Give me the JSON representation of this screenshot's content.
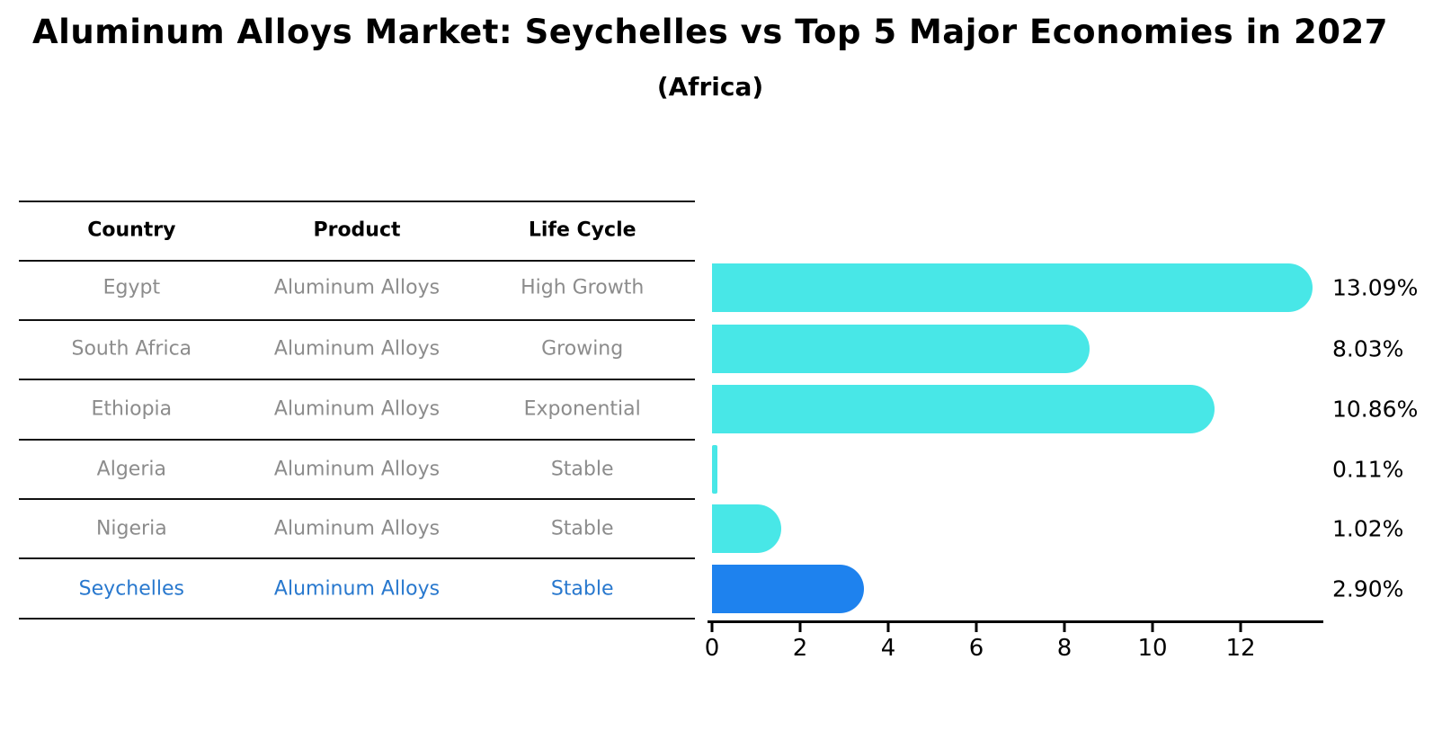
{
  "title": "Aluminum Alloys Market: Seychelles vs Top 5 Major Economies in 2027",
  "subtitle": "(Africa)",
  "table": {
    "headers": [
      "Country",
      "Product",
      "Life Cycle"
    ],
    "rows": [
      {
        "country": "Egypt",
        "product": "Aluminum Alloys",
        "life_cycle": "High Growth",
        "highlight": false
      },
      {
        "country": "South Africa",
        "product": "Aluminum Alloys",
        "life_cycle": "Growing",
        "highlight": false
      },
      {
        "country": "Ethiopia",
        "product": "Aluminum Alloys",
        "life_cycle": "Exponential",
        "highlight": false
      },
      {
        "country": "Algeria",
        "product": "Aluminum Alloys",
        "life_cycle": "Stable",
        "highlight": false
      },
      {
        "country": "Nigeria",
        "product": "Aluminum Alloys",
        "life_cycle": "Stable",
        "highlight": false
      },
      {
        "country": "Seychelles",
        "product": "Aluminum Alloys",
        "life_cycle": "Stable",
        "highlight": true
      }
    ]
  },
  "chart_data": {
    "type": "bar",
    "orientation": "horizontal",
    "title": "Aluminum Alloys Market: Seychelles vs Top 5 Major Economies in 2027",
    "subtitle": "(Africa)",
    "categories": [
      "Egypt",
      "South Africa",
      "Ethiopia",
      "Algeria",
      "Nigeria",
      "Seychelles"
    ],
    "values": [
      13.09,
      8.03,
      10.86,
      0.11,
      1.02,
      2.9
    ],
    "value_labels": [
      "13.09%",
      "8.03%",
      "10.86%",
      "0.11%",
      "1.02%",
      "2.90%"
    ],
    "x_ticks": [
      0,
      2,
      4,
      6,
      8,
      10,
      12
    ],
    "xlim": [
      0,
      13.9
    ],
    "grid": false,
    "legend": "none",
    "highlight_index": 5,
    "bar_color": "#48e7e7",
    "highlight_bar_color": "#1e82ee",
    "highlight_text_color": "#2878ce"
  },
  "colors": {
    "background": "#ffffff",
    "table_text": "#8c8c8c",
    "header_text": "#000000",
    "line": "#111111"
  }
}
